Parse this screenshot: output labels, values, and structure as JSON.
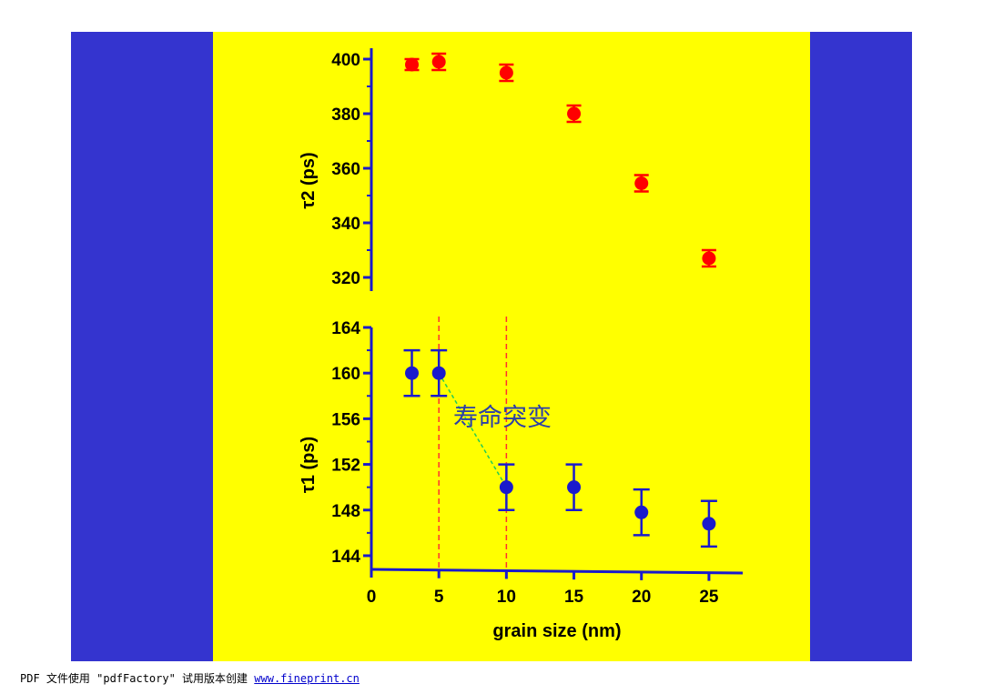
{
  "colors": {
    "side_panel": "#3434CF",
    "slide_background": "#FFFF00",
    "tau2_points": "#FF0000",
    "tau1_points": "#1A1ACC",
    "axis": "#1A1ACC",
    "guide_lines": "#FF3030",
    "trend_line": "#22CC55",
    "annotation": "#2B3FA8"
  },
  "chart_data": [
    {
      "type": "scatter",
      "panel": "top",
      "ylabel": "τ2 (ps)",
      "ylim": [
        315,
        404
      ],
      "yticks": [
        320,
        340,
        360,
        380,
        400
      ],
      "x": [
        3,
        5,
        10,
        15,
        20,
        25
      ],
      "y": [
        398,
        399,
        395,
        380,
        354.5,
        327
      ],
      "yerr": [
        2,
        3,
        3,
        3,
        3,
        3
      ],
      "marker_color": "#FF0000"
    },
    {
      "type": "scatter",
      "panel": "bottom",
      "xlabel": "grain size (nm)",
      "ylabel": "τ1 (ps)",
      "xlim": [
        0,
        27.5
      ],
      "xticks": [
        0,
        5,
        10,
        15,
        20,
        25
      ],
      "ylim": [
        142.8,
        164
      ],
      "yticks": [
        144,
        148,
        152,
        156,
        160,
        164
      ],
      "x": [
        3,
        5,
        10,
        15,
        20,
        25
      ],
      "y": [
        160,
        160,
        150,
        150,
        147.8,
        146.8
      ],
      "yerr": [
        2,
        2,
        2,
        2,
        2,
        2
      ],
      "marker_color": "#1A1ACC",
      "vertical_lines": [
        5,
        10
      ],
      "trend_segment": {
        "x": [
          5,
          10
        ],
        "y": [
          160,
          150
        ]
      },
      "annotation": "寿命突变"
    }
  ],
  "footer": {
    "text": "PDF 文件使用 \"pdfFactory\" 试用版本创建 ",
    "link": "www.fineprint.cn"
  }
}
